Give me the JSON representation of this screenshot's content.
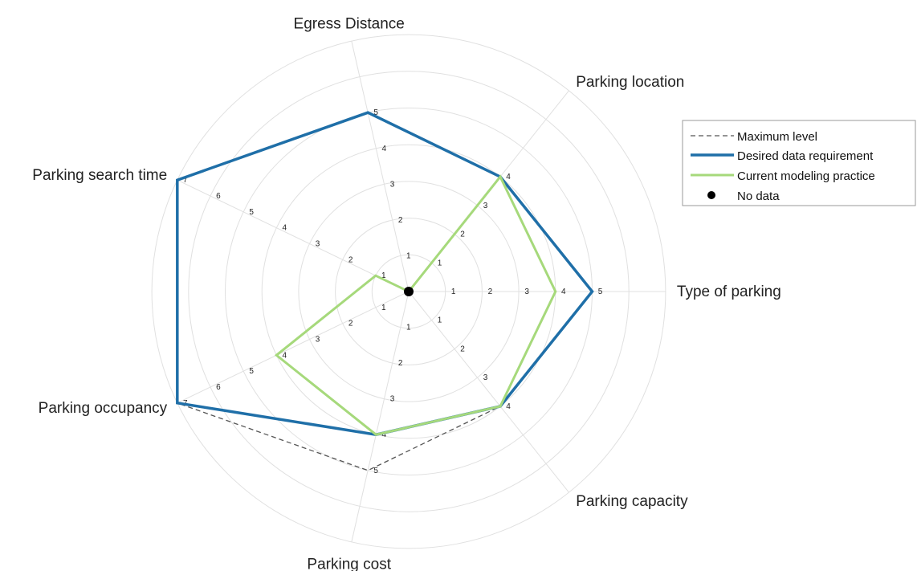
{
  "chart_data": {
    "type": "radar",
    "axes": [
      {
        "label": "Type of parking",
        "max": 5
      },
      {
        "label": "Parking location",
        "max": 4
      },
      {
        "label": "Egress Distance",
        "max": 5
      },
      {
        "label": "Parking search time",
        "max": 7
      },
      {
        "label": "Parking occupancy",
        "max": 7
      },
      {
        "label": "Parking cost",
        "max": 5
      },
      {
        "label": "Parking capacity",
        "max": 4
      }
    ],
    "series": [
      {
        "name": "Maximum level",
        "values": [
          5,
          4,
          5,
          7,
          7,
          5,
          4
        ],
        "style": "dashed",
        "color": "#555555"
      },
      {
        "name": "Desired data requirement",
        "values": [
          5,
          4,
          5,
          7,
          7,
          4,
          4
        ],
        "style": "solid",
        "color": "#1f6fa8"
      },
      {
        "name": "Current modeling practice",
        "values": [
          4,
          4,
          0,
          1,
          4,
          4,
          4
        ],
        "style": "solid",
        "color": "#a6d97b"
      },
      {
        "name": "No data",
        "values": [
          0
        ],
        "style": "marker",
        "color": "#000000"
      }
    ],
    "grid": true,
    "legend_position": "top-right"
  }
}
